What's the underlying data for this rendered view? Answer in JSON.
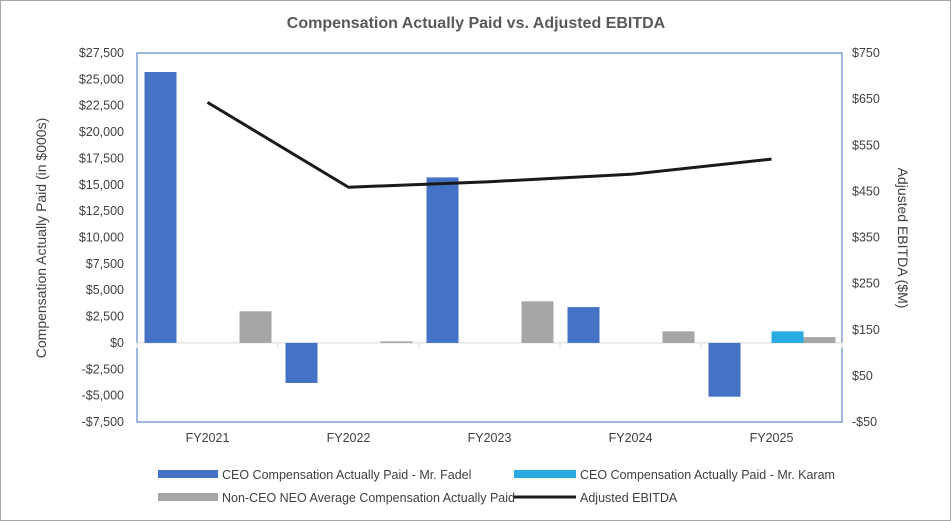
{
  "chart_data": {
    "type": "bar",
    "title": "Compensation Actually Paid vs. Adjusted EBITDA",
    "categories": [
      "FY2021",
      "FY2022",
      "FY2023",
      "FY2024",
      "FY2025"
    ],
    "y_left": {
      "label": "Compensation Actually Paid (in $000s)",
      "range": [
        -7500,
        27500
      ],
      "ticks": [
        27500,
        25000,
        22500,
        20000,
        17500,
        15000,
        12500,
        10000,
        7500,
        5000,
        2500,
        0,
        -2500,
        -5000,
        -7500
      ],
      "tick_labels": [
        "$27,500",
        "$25,000",
        "$22,500",
        "$20,000",
        "$17,500",
        "$15,000",
        "$12,500",
        "$10,000",
        "$7,500",
        "$5,000",
        "$2,500",
        "$0",
        "-$2,500",
        "-$5,000",
        "-$7,500"
      ]
    },
    "y_right": {
      "label": "Adjusted EBITDA ($M)",
      "range": [
        -50,
        750
      ],
      "ticks": [
        750,
        650,
        550,
        450,
        350,
        250,
        150,
        50,
        -50
      ],
      "tick_labels": [
        "$750",
        "$650",
        "$550",
        "$450",
        "$350",
        "$250",
        "$150",
        "$50",
        "-$50"
      ]
    },
    "series": [
      {
        "name": "CEO Compensation Actually Paid - Mr. Fadel",
        "kind": "bar",
        "axis": "left",
        "color": "#4472c4",
        "values": [
          25700,
          -3800,
          15700,
          3400,
          -5100
        ]
      },
      {
        "name": "CEO Compensation Actually Paid - Mr. Karam",
        "kind": "bar",
        "axis": "left",
        "color": "#29abe2",
        "values": [
          null,
          null,
          null,
          null,
          1100
        ]
      },
      {
        "name": "Non-CEO NEO Average Compensation Actually Paid",
        "kind": "bar",
        "axis": "left",
        "color": "#a6a6a6",
        "values": [
          3000,
          150,
          3950,
          1100,
          550
        ]
      },
      {
        "name": "Adjusted EBITDA",
        "kind": "line",
        "axis": "right",
        "color": "#1a1a1a",
        "values": [
          643,
          459,
          471,
          487,
          520
        ]
      }
    ],
    "legend_position": "bottom",
    "grid": false
  }
}
